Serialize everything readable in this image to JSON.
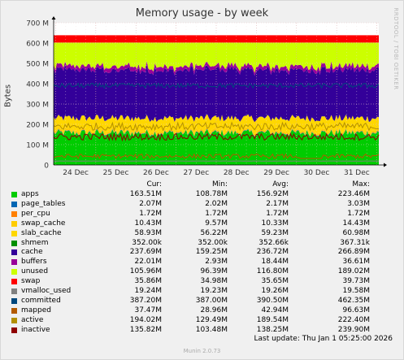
{
  "title": "Memory usage - by week",
  "ylabel": "Bytes",
  "watermark": "RRDTOOL / TOBI OETIKER",
  "header": {
    "cur": "Cur:",
    "min": "Min:",
    "avg": "Avg:",
    "max": "Max:"
  },
  "last_update": "Last update: Thu Jan  1 05:25:00 2026",
  "version": "Munin 2.0.73",
  "chart_data": {
    "type": "area",
    "title": "Memory usage - by week",
    "ylabel": "Bytes",
    "y_unit": "M",
    "ylim": [
      0,
      700
    ],
    "y_ticks": [
      0,
      100,
      200,
      300,
      400,
      500,
      600,
      700
    ],
    "y_tick_labels": [
      "0",
      "100 M",
      "200 M",
      "300 M",
      "400 M",
      "500 M",
      "600 M",
      "700 M"
    ],
    "x_tick_labels": [
      "24 Dec",
      "25 Dec",
      "26 Dec",
      "27 Dec",
      "28 Dec",
      "29 Dec",
      "30 Dec",
      "31 Dec"
    ],
    "grid": true,
    "stacked_series": [
      {
        "name": "apps",
        "color": "#00CC00",
        "value": 156.92
      },
      {
        "name": "page_tables",
        "color": "#0066B3",
        "value": 2.17
      },
      {
        "name": "per_cpu",
        "color": "#FF8000",
        "value": 1.72
      },
      {
        "name": "swap_cache",
        "color": "#FFCC00",
        "value": 10.33
      },
      {
        "name": "slab_cache",
        "color": "#FFD700",
        "value": 59.23
      },
      {
        "name": "shmem",
        "color": "#008F00",
        "value": 0.35
      },
      {
        "name": "cache",
        "color": "#330099",
        "value": 236.72
      },
      {
        "name": "buffers",
        "color": "#990099",
        "value": 18.44
      },
      {
        "name": "unused",
        "color": "#CCFF00",
        "value": 116.8
      },
      {
        "name": "swap",
        "color": "#FF0000",
        "value": 35.65
      }
    ],
    "line_series": [
      {
        "name": "vmalloc_used",
        "color": "#808080",
        "value": 19.26
      },
      {
        "name": "committed",
        "color": "#00487D",
        "value": 390.5
      },
      {
        "name": "mapped",
        "color": "#B35A00",
        "value": 42.94
      },
      {
        "name": "active",
        "color": "#B38F00",
        "value": 189.54
      },
      {
        "name": "inactive",
        "color": "#8F0000",
        "value": 138.25
      }
    ]
  },
  "legend": [
    {
      "name": "apps",
      "color": "#00CC00",
      "cur": "163.51M",
      "min": "108.78M",
      "avg": "156.92M",
      "max": "223.46M"
    },
    {
      "name": "page_tables",
      "color": "#0066B3",
      "cur": "2.07M",
      "min": "2.02M",
      "avg": "2.17M",
      "max": "3.03M"
    },
    {
      "name": "per_cpu",
      "color": "#FF8000",
      "cur": "1.72M",
      "min": "1.72M",
      "avg": "1.72M",
      "max": "1.72M"
    },
    {
      "name": "swap_cache",
      "color": "#FFCC00",
      "cur": "10.43M",
      "min": "9.57M",
      "avg": "10.33M",
      "max": "14.43M"
    },
    {
      "name": "slab_cache",
      "color": "#FFD700",
      "cur": "58.93M",
      "min": "56.22M",
      "avg": "59.23M",
      "max": "60.98M"
    },
    {
      "name": "shmem",
      "color": "#008F00",
      "cur": "352.00k",
      "min": "352.00k",
      "avg": "352.66k",
      "max": "367.31k"
    },
    {
      "name": "cache",
      "color": "#330099",
      "cur": "237.69M",
      "min": "159.25M",
      "avg": "236.72M",
      "max": "266.89M"
    },
    {
      "name": "buffers",
      "color": "#990099",
      "cur": "22.01M",
      "min": "2.93M",
      "avg": "18.44M",
      "max": "36.61M"
    },
    {
      "name": "unused",
      "color": "#CCFF00",
      "cur": "105.96M",
      "min": "96.39M",
      "avg": "116.80M",
      "max": "189.02M"
    },
    {
      "name": "swap",
      "color": "#FF0000",
      "cur": "35.86M",
      "min": "34.98M",
      "avg": "35.65M",
      "max": "39.73M"
    },
    {
      "name": "vmalloc_used",
      "color": "#808080",
      "cur": "19.24M",
      "min": "19.23M",
      "avg": "19.26M",
      "max": "19.58M"
    },
    {
      "name": "committed",
      "color": "#00487D",
      "cur": "387.20M",
      "min": "387.00M",
      "avg": "390.50M",
      "max": "462.35M"
    },
    {
      "name": "mapped",
      "color": "#B35A00",
      "cur": "37.47M",
      "min": "28.96M",
      "avg": "42.94M",
      "max": "96.63M"
    },
    {
      "name": "active",
      "color": "#B38F00",
      "cur": "194.02M",
      "min": "129.49M",
      "avg": "189.54M",
      "max": "222.40M"
    },
    {
      "name": "inactive",
      "color": "#8F0000",
      "cur": "135.82M",
      "min": "103.48M",
      "avg": "138.25M",
      "max": "239.90M"
    }
  ]
}
